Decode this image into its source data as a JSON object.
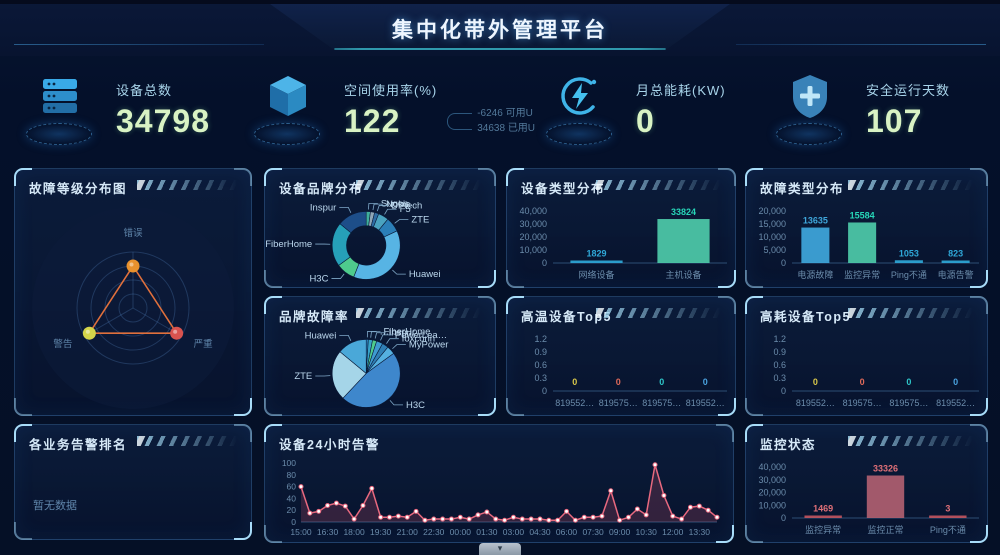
{
  "theme": {
    "background": "#051026",
    "panel_border": "#5aa0e6",
    "accent": "#3fd0e0",
    "number_color": "#d9f3c4"
  },
  "header": {
    "title": "集中化带外管理平台"
  },
  "stats": [
    {
      "icon": "server-icon",
      "label": "设备总数",
      "value": "34798"
    },
    {
      "icon": "cube-icon",
      "label": "空间使用率(%)",
      "value": "122",
      "extra": [
        {
          "num": "-6246",
          "unit": "可用U"
        },
        {
          "num": "34638",
          "unit": "已用U"
        }
      ]
    },
    {
      "icon": "energy-icon",
      "label": "月总能耗(KW)",
      "value": "0"
    },
    {
      "icon": "shield-icon",
      "label": "安全运行天数",
      "value": "107"
    }
  ],
  "panels": {
    "fault_level": {
      "title": "故障等级分布图"
    },
    "brand_dist": {
      "title": "设备品牌分布"
    },
    "device_type": {
      "title": "设备类型分布"
    },
    "fault_type": {
      "title": "故障类型分布"
    },
    "brand_fault": {
      "title": "品牌故障率"
    },
    "high_temp": {
      "title": "高温设备Top5"
    },
    "energy_top": {
      "title": "高耗设备Top5"
    },
    "biz_alarm": {
      "title": "各业务告警排名",
      "empty_text": "暂无数据"
    },
    "alarm_24h": {
      "title": "设备24小时告警"
    },
    "monitor_status": {
      "title": "监控状态"
    }
  },
  "footer": {
    "collapse_icon": "▾"
  },
  "chart_data": [
    {
      "id": "fault-level-radar",
      "type": "radar",
      "title": "故障等级分布图",
      "axes": [
        "错误",
        "严重",
        "警告"
      ],
      "values": [
        75,
        90,
        90
      ],
      "max": 100,
      "point_colors": [
        "#e8912d",
        "#d9534f",
        "#d4d44a"
      ],
      "line_color": "#e0703c"
    },
    {
      "id": "brand-donut",
      "type": "pie",
      "donut": true,
      "title": "设备品牌分布",
      "slices": [
        {
          "label": "Sugon…",
          "value": 2,
          "color": "#3fae9c"
        },
        {
          "label": "Nokia",
          "value": 2,
          "color": "#8fa8b8"
        },
        {
          "label": "DPtech",
          "value": 2,
          "color": "#2e6da4"
        },
        {
          "label": "F5",
          "value": 5,
          "color": "#4aa3c0"
        },
        {
          "label": "ZTE",
          "value": 7,
          "color": "#2b7fb8"
        },
        {
          "label": "Huawei",
          "value": 38,
          "color": "#57b4e4"
        },
        {
          "label": "H3C",
          "value": 9,
          "color": "#4ecb8d"
        },
        {
          "label": "FiberHome",
          "value": 21,
          "color": "#26a0b8"
        },
        {
          "label": "Inspur",
          "value": 14,
          "color": "#1d4e89"
        }
      ]
    },
    {
      "id": "device-type-bar",
      "type": "bar",
      "title": "设备类型分布",
      "categories": [
        "网络设备",
        "主机设备"
      ],
      "values": [
        1829,
        33824
      ],
      "colors": [
        "#2fa8d8",
        "#4ecba9"
      ],
      "label_colors": [
        "#2fa8d8",
        "#27d6b8"
      ],
      "ymax": 40000,
      "yticks": [
        "0",
        "10,000",
        "20,000",
        "30,000",
        "40,000"
      ],
      "bar_max": 78
    },
    {
      "id": "fault-type-bar",
      "type": "bar",
      "title": "故障类型分布",
      "categories": [
        "电源故障",
        "监控异常",
        "Ping不通",
        "电源告警"
      ],
      "values": [
        13635,
        15584,
        1053,
        823
      ],
      "colors": [
        "#3fa7dc",
        "#4ecba9",
        "#2fa8d8",
        "#2fa8d8"
      ],
      "label_colors": [
        "#3fa7dc",
        "#27d6b8",
        "#2fa8d8",
        "#2fa8d8"
      ],
      "ymax": 20000,
      "yticks": [
        "0",
        "5,000",
        "10,000",
        "15,000",
        "20,000"
      ],
      "bar_max": 34
    },
    {
      "id": "brand-fault-pie",
      "type": "pie",
      "donut": false,
      "title": "品牌故障率",
      "slices": [
        {
          "label": "…",
          "value": 1,
          "color": "#2e86c1"
        },
        {
          "label": "FiberHome",
          "value": 2,
          "color": "#36a3c9"
        },
        {
          "label": "Inspur",
          "value": 2,
          "color": "#4ecb8d"
        },
        {
          "label": "PowerLea…",
          "value": 3,
          "color": "#3e9ad0"
        },
        {
          "label": "foxconn",
          "value": 3,
          "color": "#2f7fb5"
        },
        {
          "label": "MyPower",
          "value": 4,
          "color": "#55b0e0"
        },
        {
          "label": "H3C",
          "value": 47,
          "color": "#3e87cc"
        },
        {
          "label": "ZTE",
          "value": 24,
          "color": "#a5d5e8"
        },
        {
          "label": "Huawei",
          "value": 14,
          "color": "#4aa8d8"
        }
      ]
    },
    {
      "id": "high-temp-bar",
      "type": "bar",
      "title": "高温设备Top5",
      "categories": [
        "819552…",
        "819575…",
        "819575…",
        "819552…"
      ],
      "values": [
        0,
        0,
        0,
        0
      ],
      "colors": [
        "#d8c84a",
        "#e06a5a",
        "#2ec7c9",
        "#4aa3e0"
      ],
      "label_colors": [
        "#d8c84a",
        "#e06a5a",
        "#2ec7c9",
        "#4aa3e0"
      ],
      "ymax": 1.2,
      "yticks": [
        "0",
        "0.3",
        "0.6",
        "0.9",
        "1.2"
      ],
      "bar_max": 30
    },
    {
      "id": "energy-top-bar",
      "type": "bar",
      "title": "高耗设备Top5",
      "categories": [
        "819552…",
        "819575…",
        "819575…",
        "819552…"
      ],
      "values": [
        0,
        0,
        0,
        0
      ],
      "colors": [
        "#d8c84a",
        "#e06a5a",
        "#2ec7c9",
        "#4aa3e0"
      ],
      "label_colors": [
        "#d8c84a",
        "#e06a5a",
        "#2ec7c9",
        "#4aa3e0"
      ],
      "ymax": 1.2,
      "yticks": [
        "0",
        "0.3",
        "0.6",
        "0.9",
        "1.2"
      ],
      "bar_max": 30
    },
    {
      "id": "alarm-24h-line",
      "type": "line",
      "title": "设备24小时告警",
      "x_labels": [
        "15:00",
        "16:30",
        "18:00",
        "19:30",
        "21:00",
        "22:30",
        "00:00",
        "01:30",
        "03:00",
        "04:30",
        "06:00",
        "07:30",
        "09:00",
        "10:30",
        "12:00",
        "13:30"
      ],
      "values": [
        60,
        15,
        18,
        28,
        32,
        27,
        5,
        28,
        57,
        8,
        8,
        10,
        8,
        18,
        3,
        5,
        5,
        5,
        8,
        5,
        12,
        17,
        5,
        3,
        8,
        5,
        5,
        5,
        3,
        3,
        18,
        3,
        8,
        8,
        10,
        53,
        3,
        8,
        22,
        12,
        97,
        45,
        10,
        5,
        25,
        27,
        20,
        8
      ],
      "ymax": 100,
      "yticks": [
        "0",
        "20",
        "40",
        "60",
        "80",
        "100"
      ],
      "line_color": "#e8697f",
      "area_color": "rgba(226,90,115,0.20)"
    },
    {
      "id": "monitor-bar",
      "type": "bar",
      "title": "监控状态",
      "categories": [
        "监控异常",
        "监控正常",
        "Ping不通"
      ],
      "values": [
        1469,
        33326,
        3
      ],
      "colors": [
        "#c05560",
        "#b06070",
        "#c05560"
      ],
      "label_colors": [
        "#e07078",
        "#e07078",
        "#e07078"
      ],
      "ymax": 40000,
      "yticks": [
        "0",
        "10,000",
        "20,000",
        "30,000",
        "40,000"
      ],
      "bar_max": 54
    }
  ]
}
